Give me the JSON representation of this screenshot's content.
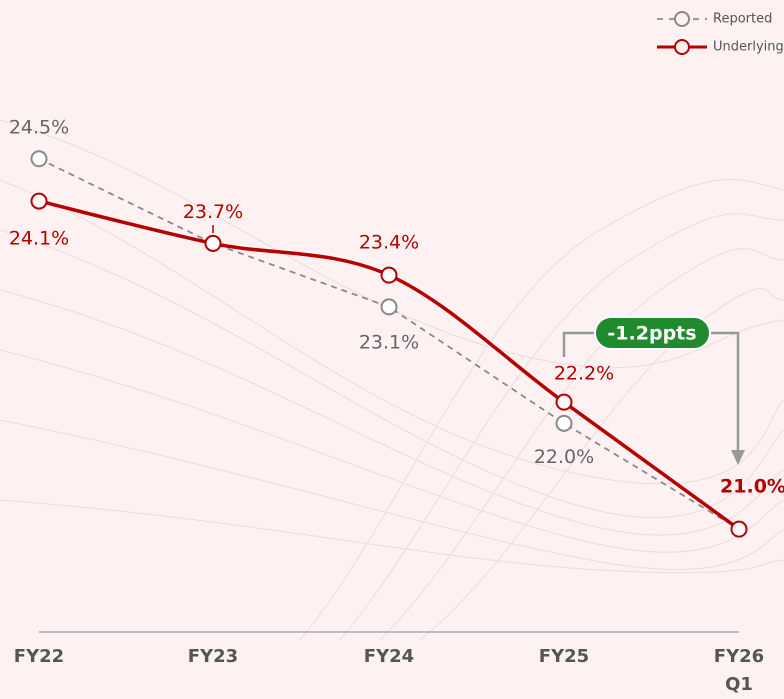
{
  "chart_data": {
    "type": "line",
    "categories": [
      "FY22",
      "FY23",
      "FY24",
      "FY25",
      "FY26 Q1"
    ],
    "series": [
      {
        "name": "Reported",
        "color": "#8a8a8a",
        "values": [
          24.5,
          23.7,
          23.1,
          22.0,
          21.0
        ],
        "value_labels": [
          "24.5%",
          null,
          "23.1%",
          "22.0%",
          null
        ]
      },
      {
        "name": "Underlying",
        "color": "#b50000",
        "values": [
          24.1,
          23.7,
          23.4,
          22.2,
          21.0
        ],
        "value_labels": [
          "24.1%",
          "23.7%",
          "23.4%",
          "22.2%",
          "21.0%"
        ]
      }
    ],
    "ylim": [
      20,
      26
    ],
    "annotation": "-1.2ppts",
    "legend": "top-right"
  }
}
